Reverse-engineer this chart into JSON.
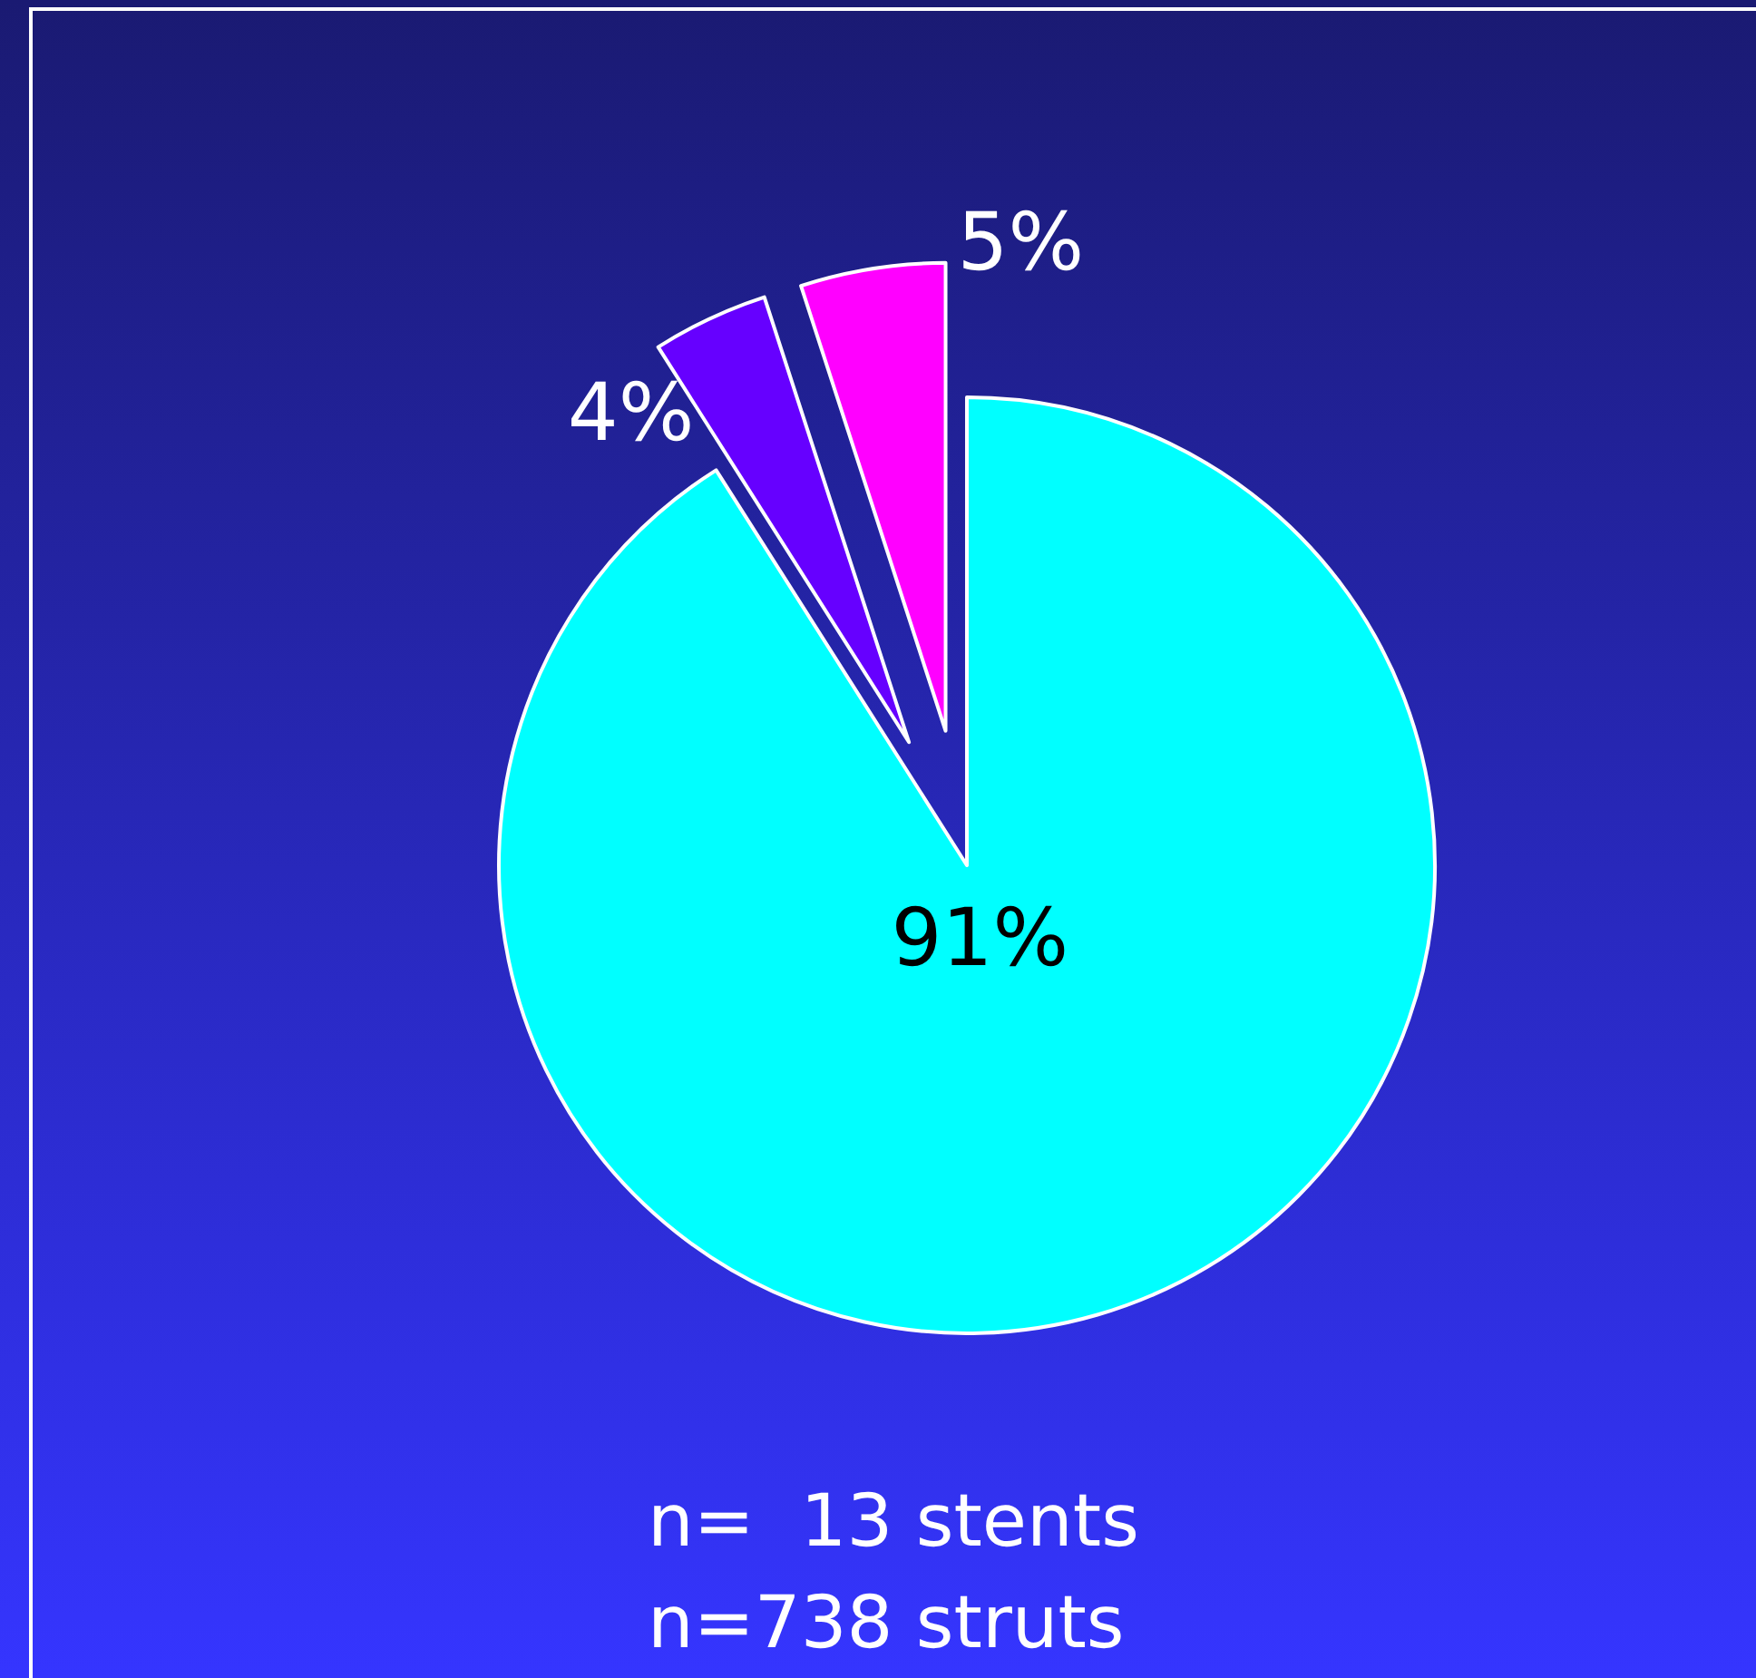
{
  "chart_data": {
    "type": "pie",
    "categories": [
      null,
      null,
      null
    ],
    "values": [
      91,
      4,
      5
    ],
    "colors": [
      "#00ffff",
      "#6600ff",
      "#ff00ff"
    ],
    "value_labels": [
      "91%",
      "4%",
      "5%"
    ],
    "annotations": [
      "n=  13 stents",
      "n=738 struts"
    ]
  }
}
